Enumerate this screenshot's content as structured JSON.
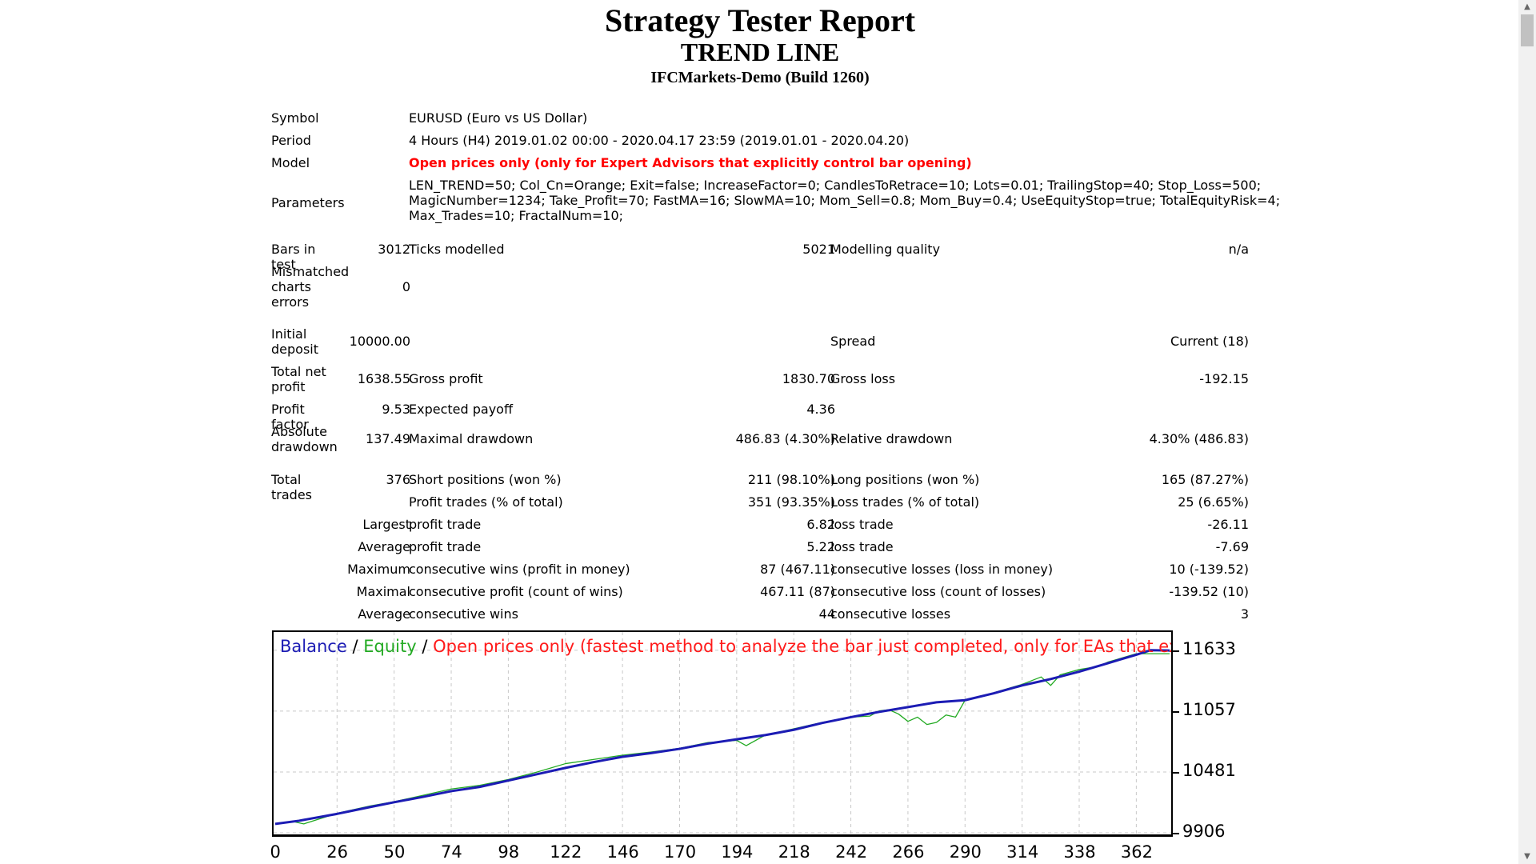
{
  "header": {
    "title": "Strategy Tester Report",
    "expert": "TREND LINE",
    "server": "IFCMarkets-Demo (Build 1260)"
  },
  "settings": {
    "symbol_label": "Symbol",
    "symbol_value": "EURUSD (Euro vs US Dollar)",
    "period_label": "Period",
    "period_value": "4 Hours (H4) 2019.01.02 00:00 - 2020.04.17 23:59 (2019.01.01 - 2020.04.20)",
    "model_label": "Model",
    "model_value": "Open prices only (only for Expert Advisors that explicitly control bar opening)",
    "parameters_label": "Parameters",
    "parameters_line1": "LEN_TREND=50; Col_Cn=Orange; Exit=false; IncreaseFactor=0; CandlesToRetrace=10; Lots=0.01; TrailingStop=40; Stop_Loss=500;",
    "parameters_line2": "MagicNumber=1234; Take_Profit=70; FastMA=16; SlowMA=10; Mom_Sell=0.8; Mom_Buy=0.4; UseEquityStop=true; TotalEquityRisk=4;",
    "parameters_line3": "Max_Trades=10; FractalNum=10;"
  },
  "stats": {
    "bars_label": "Bars in test",
    "bars_value": "3012",
    "ticks_label": "Ticks modelled",
    "ticks_value": "5021",
    "quality_label": "Modelling quality",
    "quality_value": "n/a",
    "mismatched_label": "Mismatched charts errors",
    "mismatched_value": "0",
    "deposit_label": "Initial deposit",
    "deposit_value": "10000.00",
    "spread_label": "Spread",
    "spread_value": "Current (18)",
    "netprofit_label": "Total net profit",
    "netprofit_value": "1638.55",
    "grossprofit_label": "Gross profit",
    "grossprofit_value": "1830.70",
    "grossloss_label": "Gross loss",
    "grossloss_value": "-192.15",
    "pf_label": "Profit factor",
    "pf_value": "9.53",
    "payoff_label": "Expected payoff",
    "payoff_value": "4.36",
    "absdd_label": "Absolute drawdown",
    "absdd_value": "137.49",
    "maxdd_label": "Maximal drawdown",
    "maxdd_value": "486.83 (4.30%)",
    "reldd_label": "Relative drawdown",
    "reldd_value": "4.30% (486.83)",
    "trades_label": "Total trades",
    "trades_value": "376",
    "short_label": "Short positions (won %)",
    "short_value": "211 (98.10%)",
    "long_label": "Long positions (won %)",
    "long_value": "165 (87.27%)",
    "ptrades_label": "Profit trades (% of total)",
    "ptrades_value": "351 (93.35%)",
    "ltrades_label": "Loss trades (% of total)",
    "ltrades_value": "25 (6.65%)",
    "largest_label": "Largest",
    "largest_profit_label": "profit trade",
    "largest_profit_value": "6.82",
    "largest_loss_label": "loss trade",
    "largest_loss_value": "-26.11",
    "average_label": "Average",
    "average_profit_label": "profit trade",
    "average_profit_value": "5.22",
    "average_loss_label": "loss trade",
    "average_loss_value": "-7.69",
    "maximum_label": "Maximum",
    "max_wins_label": "consecutive wins (profit in money)",
    "max_wins_value": "87 (467.11)",
    "max_losses_label": "consecutive losses (loss in money)",
    "max_losses_value": "10 (-139.52)",
    "maximal_label": "Maximal",
    "maximal_profit_label": "consecutive profit (count of wins)",
    "maximal_profit_value": "467.11 (87)",
    "maximal_loss_label": "consecutive loss (count of losses)",
    "maximal_loss_value": "-139.52 (10)",
    "avg2_label": "Average",
    "avg_wins_label": "consecutive wins",
    "avg_wins_value": "44",
    "avg_losses_label": "consecutive losses",
    "avg_losses_value": "3"
  },
  "chart_legend": {
    "balance": "Balance",
    "sep1": "/",
    "equity": "Equity",
    "sep2": "/",
    "description": "Open prices only (fastest method to analyze the bar just completed, only for EAs that explicitly control b"
  },
  "colors": {
    "balance": "#1c1cb4",
    "equity": "#22aa22",
    "model_warning": "#ff0000"
  },
  "chart_data": {
    "type": "line",
    "xlabel": "",
    "ylabel": "",
    "x_ticks": [
      "0",
      "26",
      "50",
      "74",
      "98",
      "122",
      "146",
      "170",
      "194",
      "218",
      "242",
      "266",
      "290",
      "314",
      "338",
      "362"
    ],
    "y_ticks": [
      "11633",
      "11057",
      "10481",
      "9906"
    ],
    "xlim": [
      0,
      376
    ],
    "ylim": [
      9906,
      11790
    ],
    "grid": true,
    "series": [
      {
        "name": "Balance",
        "x": [
          0,
          10,
          26,
          40,
          50,
          62,
          74,
          86,
          98,
          110,
          122,
          134,
          146,
          158,
          170,
          182,
          194,
          206,
          218,
          230,
          242,
          254,
          266,
          278,
          290,
          302,
          314,
          326,
          338,
          350,
          362,
          368,
          376
        ],
        "values": [
          9990,
          10020,
          10085,
          10150,
          10195,
          10245,
          10300,
          10340,
          10400,
          10460,
          10520,
          10575,
          10625,
          10660,
          10700,
          10750,
          10790,
          10830,
          10880,
          10945,
          11000,
          11050,
          11095,
          11140,
          11160,
          11225,
          11300,
          11360,
          11430,
          11510,
          11590,
          11633,
          11630
        ]
      },
      {
        "name": "Equity",
        "x": [
          0,
          8,
          12,
          26,
          40,
          50,
          62,
          74,
          86,
          98,
          110,
          122,
          134,
          146,
          158,
          170,
          182,
          194,
          198,
          206,
          218,
          230,
          242,
          250,
          254,
          258,
          262,
          266,
          270,
          274,
          278,
          282,
          286,
          290,
          302,
          314,
          322,
          326,
          330,
          338,
          346,
          350,
          362,
          368,
          376
        ],
        "values": [
          9995,
          10010,
          9990,
          10090,
          10160,
          10200,
          10260,
          10320,
          10355,
          10410,
          10480,
          10560,
          10600,
          10640,
          10670,
          10705,
          10760,
          10780,
          10730,
          10830,
          10890,
          10950,
          11000,
          11010,
          11060,
          11070,
          11030,
          10960,
          11000,
          10930,
          10950,
          11020,
          11000,
          11160,
          11230,
          11310,
          11380,
          11300,
          11400,
          11450,
          11480,
          11520,
          11600,
          11600,
          11600
        ]
      }
    ]
  }
}
